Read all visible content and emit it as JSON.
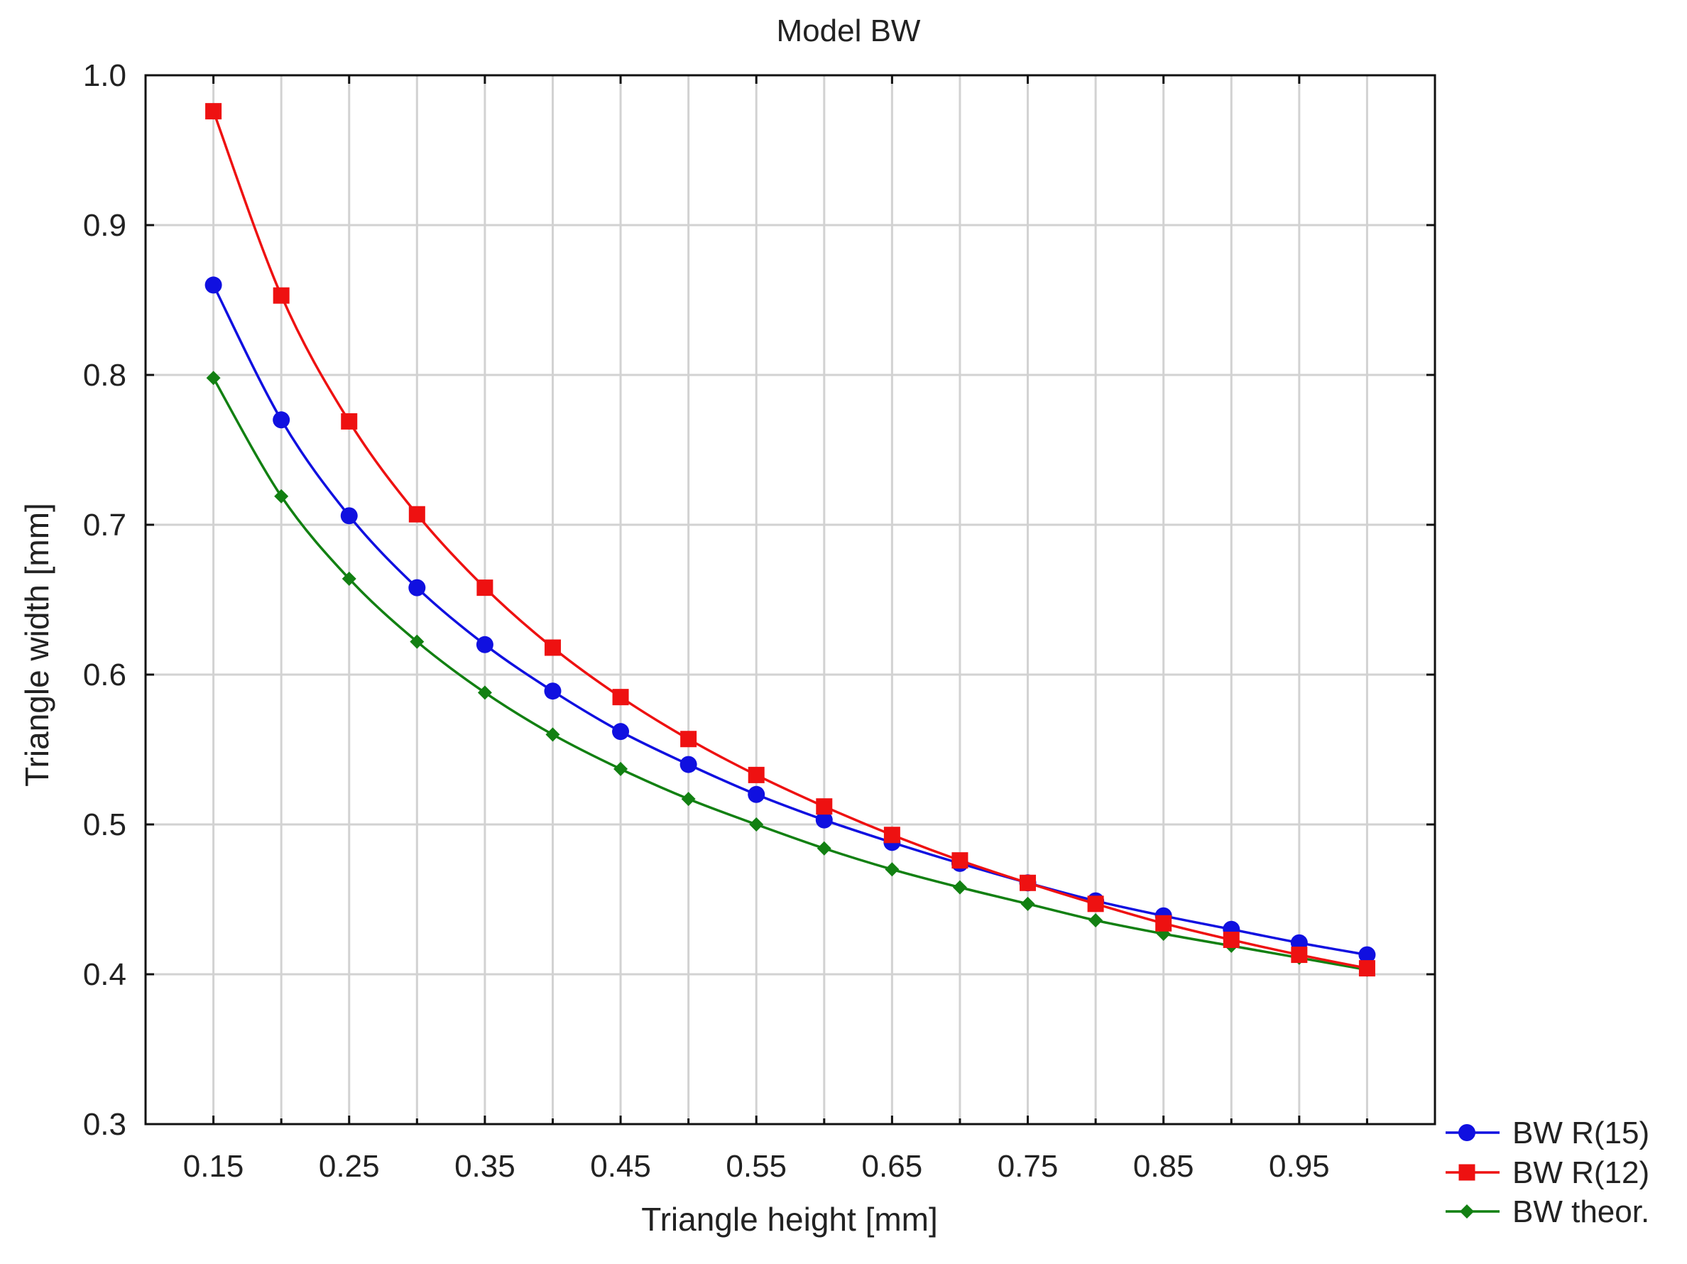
{
  "chart_data": {
    "type": "line",
    "title": "Model BW",
    "xlabel": "Triangle height [mm]",
    "ylabel": "Triangle width [mm]",
    "xlim": [
      0.1,
      1.05
    ],
    "ylim": [
      0.3,
      1.0
    ],
    "x": [
      0.15,
      0.2,
      0.25,
      0.3,
      0.35,
      0.4,
      0.45,
      0.5,
      0.55,
      0.6,
      0.65,
      0.7,
      0.75,
      0.8,
      0.85,
      0.9,
      0.95,
      1.0
    ],
    "x_ticks": [
      0.15,
      0.25,
      0.35,
      0.45,
      0.55,
      0.65,
      0.75,
      0.85,
      0.95
    ],
    "x_tick_labels": [
      "0.15",
      "0.25",
      "0.35",
      "0.45",
      "0.55",
      "0.65",
      "0.75",
      "0.85",
      "0.95"
    ],
    "x_minor_ticks": [
      0.2,
      0.3,
      0.4,
      0.5,
      0.6,
      0.7,
      0.8,
      0.9,
      1.0
    ],
    "y_ticks": [
      0.3,
      0.4,
      0.5,
      0.6,
      0.7,
      0.8,
      0.9,
      1.0
    ],
    "y_tick_labels": [
      "0.3",
      "0.4",
      "0.5",
      "0.6",
      "0.7",
      "0.8",
      "0.9",
      "1.0"
    ],
    "grid": true,
    "legend_position": "bottom-right-outside",
    "series": [
      {
        "name": "BW R(15)",
        "color": "#1010e0",
        "marker": "circle",
        "values": [
          0.86,
          0.77,
          0.706,
          0.658,
          0.62,
          0.589,
          0.562,
          0.54,
          0.52,
          0.503,
          0.488,
          0.474,
          0.461,
          0.449,
          0.439,
          0.43,
          0.421,
          0.413
        ]
      },
      {
        "name": "BW R(12)",
        "color": "#ee1111",
        "marker": "square",
        "values": [
          0.976,
          0.853,
          0.769,
          0.707,
          0.658,
          0.618,
          0.585,
          0.557,
          0.533,
          0.512,
          0.493,
          0.476,
          0.461,
          0.447,
          0.434,
          0.423,
          0.413,
          0.404
        ]
      },
      {
        "name": "BW theor.",
        "color": "#128012",
        "marker": "diamond",
        "values": [
          0.798,
          0.719,
          0.664,
          0.622,
          0.588,
          0.56,
          0.537,
          0.517,
          0.5,
          0.484,
          0.47,
          0.458,
          0.447,
          0.436,
          0.427,
          0.419,
          0.411,
          0.403
        ]
      }
    ]
  }
}
